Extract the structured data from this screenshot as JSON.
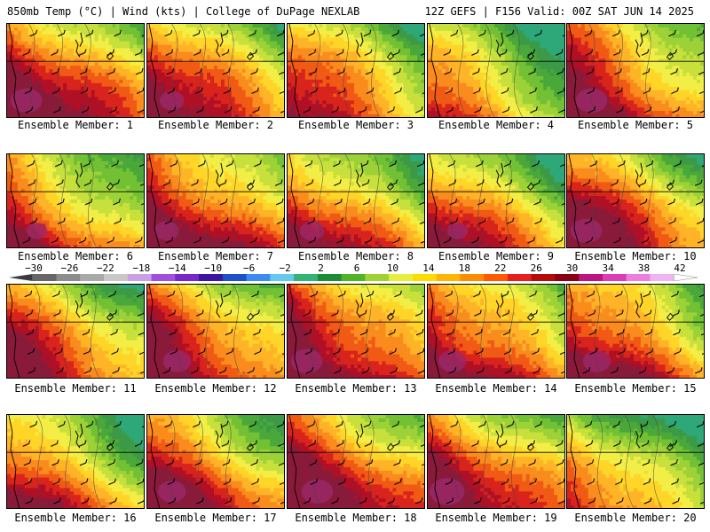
{
  "header": {
    "left": "850mb Temp (°C) | Wind (kts) | College of DuPage NEXLAB",
    "right": "12Z GEFS | F156 Valid: 00Z SAT JUN 14 2025"
  },
  "colorbar": {
    "ticks": [
      "−30",
      "−26",
      "−22",
      "−18",
      "−14",
      "−10",
      "−6",
      "−2",
      "2",
      "6",
      "10",
      "14",
      "18",
      "22",
      "26",
      "30",
      "34",
      "38",
      "42"
    ],
    "colors": [
      "#676767",
      "#8c8c8c",
      "#a9a9a9",
      "#c8c8c8",
      "#c8a0e6",
      "#a050dc",
      "#7828c8",
      "#3c14a0",
      "#1e50c8",
      "#3c8cf0",
      "#64c8f0",
      "#32b478",
      "#1e8c32",
      "#50b428",
      "#a0d232",
      "#e6f03c",
      "#ffdc00",
      "#ffb400",
      "#ff8c00",
      "#ff5a00",
      "#e61e1e",
      "#b40a0a",
      "#8c0014",
      "#be147d",
      "#dc3cb4",
      "#f07ddc",
      "#f0b4f0"
    ]
  },
  "panels": [
    {
      "label": "Ensemble Member: 1",
      "warm": 0.8,
      "cool": 0.35
    },
    {
      "label": "Ensemble Member: 2",
      "warm": 0.7,
      "cool": 0.4
    },
    {
      "label": "Ensemble Member: 3",
      "warm": 0.45,
      "cool": 0.35
    },
    {
      "label": "Ensemble Member: 4",
      "warm": 0.4,
      "cool": 0.6
    },
    {
      "label": "Ensemble Member: 5",
      "warm": 0.8,
      "cool": 0.45
    },
    {
      "label": "Ensemble Member: 6",
      "warm": 0.65,
      "cool": 0.55
    },
    {
      "label": "Ensemble Member: 7",
      "warm": 0.7,
      "cool": 0.25
    },
    {
      "label": "Ensemble Member: 8",
      "warm": 0.7,
      "cool": 0.55
    },
    {
      "label": "Ensemble Member: 9",
      "warm": 0.65,
      "cool": 0.55
    },
    {
      "label": "Ensemble Member: 10",
      "warm": 0.8,
      "cool": 0.45
    },
    {
      "label": "Ensemble Member: 11",
      "warm": 0.6,
      "cool": 0.4
    },
    {
      "label": "Ensemble Member: 12",
      "warm": 0.75,
      "cool": 0.4
    },
    {
      "label": "Ensemble Member: 13",
      "warm": 0.8,
      "cool": 0.3
    },
    {
      "label": "Ensemble Member: 14",
      "warm": 0.75,
      "cool": 0.4
    },
    {
      "label": "Ensemble Member: 15",
      "warm": 0.75,
      "cool": 0.4
    },
    {
      "label": "Ensemble Member: 16",
      "warm": 0.6,
      "cool": 0.55
    },
    {
      "label": "Ensemble Member: 17",
      "warm": 0.75,
      "cool": 0.45
    },
    {
      "label": "Ensemble Member: 18",
      "warm": 0.8,
      "cool": 0.3
    },
    {
      "label": "Ensemble Member: 19",
      "warm": 0.85,
      "cool": 0.45
    },
    {
      "label": "Ensemble Member: 20",
      "warm": 0.55,
      "cool": 0.75
    }
  ]
}
